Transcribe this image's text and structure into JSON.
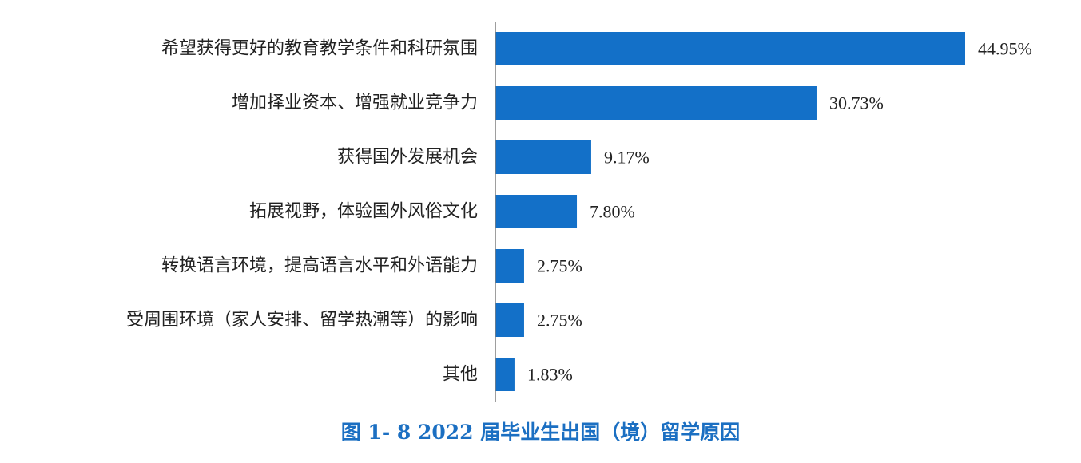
{
  "chart_data": {
    "type": "bar",
    "orientation": "horizontal",
    "title": "图 1- 8  2022 届毕业生出国（境）留学原因",
    "categories": [
      "希望获得更好的教育教学条件和科研氛围",
      "增加择业资本、增强就业竞争力",
      "获得国外发展机会",
      "拓展视野，体验国外风俗文化",
      "转换语言环境，提高语言水平和外语能力",
      "受周围环境（家人安排、留学热潮等）的影响",
      "其他"
    ],
    "values": [
      44.95,
      30.73,
      9.17,
      7.8,
      2.75,
      2.75,
      1.83
    ],
    "value_labels": [
      "44.95%",
      "30.73%",
      "9.17%",
      "7.80%",
      "2.75%",
      "2.75%",
      "1.83%"
    ],
    "unit": "%",
    "bar_color": "#1370c8",
    "axis_color": "#7f7f7f",
    "xlim": [
      0,
      50
    ],
    "grid": false,
    "legend": "none"
  }
}
